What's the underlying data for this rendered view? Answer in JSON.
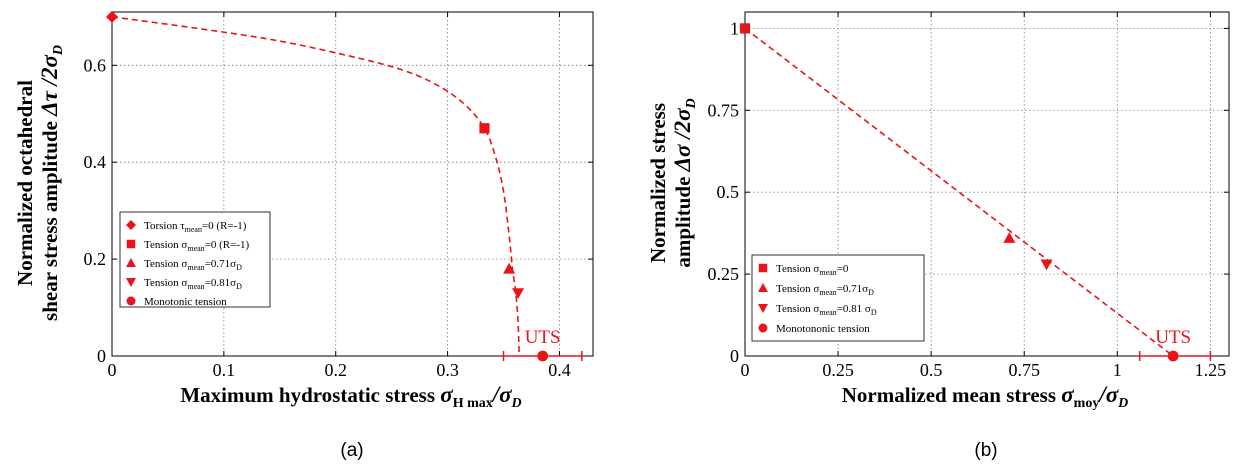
{
  "colors": {
    "accent": "#e8141b",
    "axis": "#000000",
    "grid": "#7f7f7f"
  },
  "chart_data": [
    {
      "id": "a",
      "type": "scatter",
      "caption": "(a)",
      "xlabel_main": "Maximum hydrostatic stress ",
      "xlabel_sym": "σ",
      "xlabel_sub": "H max",
      "xlabel_tail": "/σ",
      "xlabel_tail_sub": "D",
      "ylabel_line1": "Normalized octahedral",
      "ylabel_line2_main": "shear stress amplitude ",
      "ylabel_line2_sym": "Δτ /2σ",
      "ylabel_line2_sub": "D",
      "xlim": [
        0,
        0.43
      ],
      "ylim": [
        0,
        0.71
      ],
      "xticks": [
        {
          "v": 0,
          "t": "0"
        },
        {
          "v": 0.1,
          "t": "0.1"
        },
        {
          "v": 0.2,
          "t": "0.2"
        },
        {
          "v": 0.3,
          "t": "0.3"
        },
        {
          "v": 0.4,
          "t": "0.4"
        }
      ],
      "yticks": [
        {
          "v": 0,
          "t": "0"
        },
        {
          "v": 0.2,
          "t": "0.2"
        },
        {
          "v": 0.4,
          "t": "0.4"
        },
        {
          "v": 0.6,
          "t": "0.6"
        }
      ],
      "grid": true,
      "curve": [
        [
          0,
          0.7
        ],
        [
          0.08,
          0.675
        ],
        [
          0.15,
          0.65
        ],
        [
          0.22,
          0.615
        ],
        [
          0.26,
          0.59
        ],
        [
          0.29,
          0.56
        ],
        [
          0.315,
          0.52
        ],
        [
          0.333,
          0.47
        ],
        [
          0.343,
          0.41
        ],
        [
          0.35,
          0.34
        ],
        [
          0.355,
          0.25
        ],
        [
          0.358,
          0.18
        ],
        [
          0.361,
          0.13
        ],
        [
          0.363,
          0.07
        ],
        [
          0.364,
          0.0
        ]
      ],
      "series": [
        {
          "marker": "diamond",
          "x": 0,
          "y": 0.7
        },
        {
          "marker": "square",
          "x": 0.333,
          "y": 0.47
        },
        {
          "marker": "triangle-up",
          "x": 0.355,
          "y": 0.18
        },
        {
          "marker": "triangle-down",
          "x": 0.363,
          "y": 0.13
        },
        {
          "marker": "circle",
          "x": 0.385,
          "y": 0.0
        }
      ],
      "uts": {
        "label": "UTS",
        "x_range": [
          0.35,
          0.42
        ],
        "center": 0.385
      },
      "legend": {
        "placement": "center-left",
        "entries": [
          {
            "marker": "diamond",
            "pre": "Torsion τ",
            "sub": "mean",
            "post": "=0 (R=-1)",
            "sub2": ""
          },
          {
            "marker": "square",
            "pre": "Tension σ",
            "sub": "mean",
            "post": "=0 (R=-1)",
            "sub2": ""
          },
          {
            "marker": "triangle-up",
            "pre": "Tension σ",
            "sub": "mean",
            "post": "=0.71σ",
            "sub2": "D"
          },
          {
            "marker": "triangle-down",
            "pre": "Tension σ",
            "sub": "mean",
            "post": "=0.81σ",
            "sub2": "D"
          },
          {
            "marker": "circle",
            "pre": "Monotonic tension",
            "sub": "",
            "post": "",
            "sub2": ""
          }
        ]
      }
    },
    {
      "id": "b",
      "type": "scatter",
      "caption": "(b)",
      "xlabel_main": "Normalized mean stress ",
      "xlabel_sym": "σ",
      "xlabel_sub": "moy",
      "xlabel_tail": "/σ",
      "xlabel_tail_sub": "D",
      "ylabel_line1": "Normalized stress",
      "ylabel_line2_main": "amplitude ",
      "ylabel_line2_sym": "Δσ /2σ",
      "ylabel_line2_sub": "D",
      "xlim": [
        0,
        1.3
      ],
      "ylim": [
        0,
        1.05
      ],
      "xticks": [
        {
          "v": 0,
          "t": "0"
        },
        {
          "v": 0.25,
          "t": "0.25"
        },
        {
          "v": 0.5,
          "t": "0.5"
        },
        {
          "v": 0.75,
          "t": "0.75"
        },
        {
          "v": 1,
          "t": "1"
        },
        {
          "v": 1.25,
          "t": "1.25"
        }
      ],
      "yticks": [
        {
          "v": 0,
          "t": "0"
        },
        {
          "v": 0.25,
          "t": "0.25"
        },
        {
          "v": 0.5,
          "t": "0.5"
        },
        {
          "v": 0.75,
          "t": "0.75"
        },
        {
          "v": 1,
          "t": "1"
        }
      ],
      "grid": true,
      "curve": [
        [
          0,
          1.0
        ],
        [
          1.15,
          0.0
        ]
      ],
      "series": [
        {
          "marker": "square",
          "x": 0,
          "y": 1.0
        },
        {
          "marker": "triangle-up",
          "x": 0.71,
          "y": 0.36
        },
        {
          "marker": "triangle-down",
          "x": 0.81,
          "y": 0.28
        },
        {
          "marker": "circle",
          "x": 1.15,
          "y": 0.0
        }
      ],
      "uts": {
        "label": "UTS",
        "x_range": [
          1.06,
          1.25
        ],
        "center": 1.15
      },
      "legend": {
        "placement": "bottom-left",
        "entries": [
          {
            "marker": "square",
            "pre": "Tension σ",
            "sub": "mean",
            "post": "=0",
            "sub2": ""
          },
          {
            "marker": "triangle-up",
            "pre": "Tension σ",
            "sub": "mean",
            "post": "=0.71σ",
            "sub2": "D"
          },
          {
            "marker": "triangle-down",
            "pre": "Tension σ",
            "sub": "mean",
            "post": "=0.81 σ",
            "sub2": "D"
          },
          {
            "marker": "circle",
            "pre": "Monotononic tension",
            "sub": "",
            "post": "",
            "sub2": ""
          }
        ]
      }
    }
  ]
}
